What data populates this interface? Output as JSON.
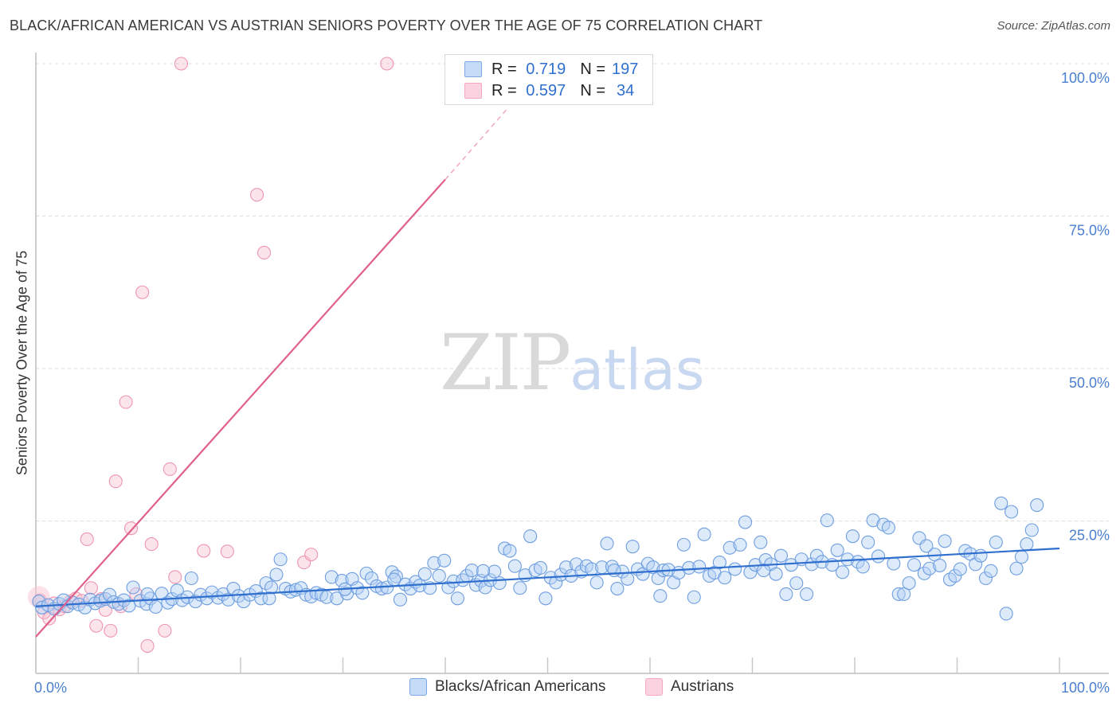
{
  "title": "BLACK/AFRICAN AMERICAN VS AUSTRIAN SENIORS POVERTY OVER THE AGE OF 75 CORRELATION CHART",
  "source": "Source: ZipAtlas.com",
  "watermark": {
    "zip": "ZIP",
    "atlas": "atlas"
  },
  "legend_top": [
    {
      "r_label": "R =",
      "r_value": "0.719",
      "n_label": "N =",
      "n_value": "197",
      "color": "#a8c8f0"
    },
    {
      "r_label": "R =",
      "r_value": "0.597",
      "n_label": "N =",
      "n_value": "34",
      "color": "#f5b8cb"
    }
  ],
  "legend_bottom": [
    "Blacks/African Americans",
    "Austrians"
  ],
  "chart_data": {
    "type": "scatter",
    "title": "BLACK/AFRICAN AMERICAN VS AUSTRIAN SENIORS POVERTY OVER THE AGE OF 75 CORRELATION CHART",
    "xlabel": "",
    "ylabel": "Seniors Poverty Over the Age of 75",
    "xlim": [
      0,
      100
    ],
    "ylim": [
      0,
      100
    ],
    "x_tick_labels": [
      "0.0%",
      "100.0%"
    ],
    "y_tick_labels": [
      "100.0%",
      "75.0%",
      "50.0%",
      "25.0%"
    ],
    "y_tick_values": [
      100,
      75,
      50,
      25
    ],
    "grid": true,
    "legend_position": "top-center",
    "series": [
      {
        "name": "Blacks/African Americans",
        "color": "#7aa8e8",
        "line_color": "#2f6fce",
        "trend": {
          "x0": 0,
          "y0": 11.0,
          "x1": 100,
          "y1": 20.5
        },
        "points": [
          [
            0.3,
            11.8
          ],
          [
            0.6,
            10.8
          ],
          [
            1.2,
            11.2
          ],
          [
            1.8,
            10.6
          ],
          [
            2.3,
            11.4
          ],
          [
            2.7,
            12.0
          ],
          [
            3.1,
            11.0
          ],
          [
            3.6,
            11.6
          ],
          [
            4.2,
            11.3
          ],
          [
            4.8,
            10.8
          ],
          [
            5.3,
            12.1
          ],
          [
            5.8,
            11.5
          ],
          [
            6.3,
            11.9
          ],
          [
            6.8,
            12.2
          ],
          [
            7.2,
            12.9
          ],
          [
            7.6,
            11.7
          ],
          [
            8.1,
            11.4
          ],
          [
            8.6,
            12.0
          ],
          [
            9.1,
            11.1
          ],
          [
            9.5,
            14.1
          ],
          [
            10.2,
            11.9
          ],
          [
            10.8,
            11.4
          ],
          [
            11.2,
            12.3
          ],
          [
            11.7,
            10.9
          ],
          [
            12.3,
            13.1
          ],
          [
            12.9,
            11.6
          ],
          [
            13.3,
            12.2
          ],
          [
            13.8,
            13.6
          ],
          [
            14.3,
            12.0
          ],
          [
            14.8,
            12.5
          ],
          [
            15.2,
            15.6
          ],
          [
            15.6,
            11.8
          ],
          [
            16.1,
            12.9
          ],
          [
            16.7,
            12.3
          ],
          [
            17.2,
            13.3
          ],
          [
            17.8,
            12.4
          ],
          [
            18.3,
            13.0
          ],
          [
            18.8,
            12.1
          ],
          [
            19.3,
            13.9
          ],
          [
            19.8,
            12.7
          ],
          [
            20.3,
            11.8
          ],
          [
            20.9,
            12.9
          ],
          [
            21.5,
            13.5
          ],
          [
            22.0,
            12.3
          ],
          [
            22.5,
            14.8
          ],
          [
            23.0,
            14.1
          ],
          [
            23.5,
            16.2
          ],
          [
            23.9,
            18.7
          ],
          [
            24.4,
            13.9
          ],
          [
            24.9,
            13.4
          ],
          [
            25.4,
            13.7
          ],
          [
            25.9,
            14.0
          ],
          [
            26.4,
            12.9
          ],
          [
            26.9,
            12.6
          ],
          [
            27.4,
            13.2
          ],
          [
            27.9,
            12.9
          ],
          [
            28.4,
            12.5
          ],
          [
            28.9,
            15.8
          ],
          [
            29.4,
            12.3
          ],
          [
            29.9,
            15.2
          ],
          [
            30.4,
            13.1
          ],
          [
            30.9,
            15.5
          ],
          [
            31.4,
            14.0
          ],
          [
            31.9,
            13.2
          ],
          [
            32.3,
            16.4
          ],
          [
            32.8,
            15.6
          ],
          [
            33.3,
            14.3
          ],
          [
            33.8,
            13.9
          ],
          [
            34.3,
            14.1
          ],
          [
            34.8,
            16.6
          ],
          [
            35.2,
            15.9
          ],
          [
            35.6,
            12.1
          ],
          [
            36.1,
            14.6
          ],
          [
            36.6,
            13.9
          ],
          [
            37.1,
            15.0
          ],
          [
            37.5,
            14.4
          ],
          [
            38.0,
            16.3
          ],
          [
            38.5,
            14.0
          ],
          [
            38.9,
            18.1
          ],
          [
            39.4,
            16.0
          ],
          [
            39.9,
            18.5
          ],
          [
            40.3,
            14.1
          ],
          [
            40.8,
            15.1
          ],
          [
            41.2,
            12.3
          ],
          [
            41.7,
            15.3
          ],
          [
            42.1,
            16.0
          ],
          [
            42.6,
            16.9
          ],
          [
            43.0,
            14.5
          ],
          [
            43.5,
            15.2
          ],
          [
            43.9,
            14.1
          ],
          [
            44.4,
            15.3
          ],
          [
            44.8,
            16.7
          ],
          [
            45.3,
            14.8
          ],
          [
            45.8,
            20.5
          ],
          [
            46.3,
            20.1
          ],
          [
            46.8,
            17.6
          ],
          [
            47.3,
            14.0
          ],
          [
            47.8,
            16.1
          ],
          [
            48.3,
            22.5
          ],
          [
            48.8,
            16.9
          ],
          [
            49.3,
            17.3
          ],
          [
            49.8,
            12.3
          ],
          [
            50.3,
            15.7
          ],
          [
            50.8,
            14.9
          ],
          [
            51.3,
            16.2
          ],
          [
            51.8,
            17.4
          ],
          [
            52.3,
            16.0
          ],
          [
            52.8,
            17.9
          ],
          [
            53.3,
            16.7
          ],
          [
            53.8,
            17.6
          ],
          [
            54.3,
            17.1
          ],
          [
            54.8,
            14.9
          ],
          [
            55.3,
            17.4
          ],
          [
            55.8,
            21.3
          ],
          [
            56.3,
            17.5
          ],
          [
            56.8,
            13.9
          ],
          [
            57.3,
            16.7
          ],
          [
            57.8,
            15.5
          ],
          [
            58.3,
            20.8
          ],
          [
            58.8,
            17.1
          ],
          [
            59.3,
            16.3
          ],
          [
            59.8,
            18.0
          ],
          [
            60.3,
            17.4
          ],
          [
            60.8,
            15.6
          ],
          [
            61.3,
            16.9
          ],
          [
            61.8,
            17.0
          ],
          [
            62.3,
            14.9
          ],
          [
            62.8,
            16.5
          ],
          [
            63.3,
            21.1
          ],
          [
            63.8,
            17.3
          ],
          [
            64.3,
            12.5
          ],
          [
            64.8,
            17.5
          ],
          [
            65.3,
            22.8
          ],
          [
            65.8,
            16.0
          ],
          [
            66.3,
            16.5
          ],
          [
            66.8,
            18.2
          ],
          [
            67.3,
            15.7
          ],
          [
            67.8,
            20.6
          ],
          [
            68.3,
            17.1
          ],
          [
            68.8,
            21.1
          ],
          [
            69.3,
            24.8
          ],
          [
            69.8,
            16.6
          ],
          [
            70.3,
            17.8
          ],
          [
            70.8,
            21.5
          ],
          [
            71.3,
            18.6
          ],
          [
            71.8,
            17.9
          ],
          [
            72.3,
            16.3
          ],
          [
            72.8,
            19.3
          ],
          [
            73.3,
            13.0
          ],
          [
            73.8,
            17.8
          ],
          [
            74.3,
            14.8
          ],
          [
            74.8,
            18.7
          ],
          [
            75.3,
            13.0
          ],
          [
            75.8,
            17.9
          ],
          [
            76.3,
            19.3
          ],
          [
            76.8,
            18.3
          ],
          [
            77.3,
            25.1
          ],
          [
            77.8,
            17.8
          ],
          [
            78.3,
            20.2
          ],
          [
            78.8,
            16.6
          ],
          [
            79.3,
            18.7
          ],
          [
            79.8,
            22.5
          ],
          [
            80.3,
            18.3
          ],
          [
            80.8,
            17.5
          ],
          [
            81.3,
            21.5
          ],
          [
            81.8,
            25.1
          ],
          [
            82.3,
            19.2
          ],
          [
            82.8,
            24.4
          ],
          [
            83.3,
            23.9
          ],
          [
            83.8,
            18.0
          ],
          [
            84.3,
            13.0
          ],
          [
            84.8,
            13.0
          ],
          [
            85.3,
            14.8
          ],
          [
            85.8,
            17.8
          ],
          [
            86.3,
            22.2
          ],
          [
            86.8,
            16.4
          ],
          [
            87.3,
            17.2
          ],
          [
            87.8,
            19.5
          ],
          [
            88.3,
            17.7
          ],
          [
            88.8,
            21.7
          ],
          [
            89.3,
            15.4
          ],
          [
            89.8,
            16.0
          ],
          [
            90.3,
            17.1
          ],
          [
            90.8,
            20.1
          ],
          [
            91.3,
            19.6
          ],
          [
            91.8,
            17.9
          ],
          [
            92.3,
            19.3
          ],
          [
            92.8,
            15.6
          ],
          [
            93.3,
            16.8
          ],
          [
            93.8,
            21.5
          ],
          [
            94.3,
            27.9
          ],
          [
            94.8,
            9.8
          ],
          [
            95.3,
            26.5
          ],
          [
            95.8,
            17.2
          ],
          [
            96.3,
            19.1
          ],
          [
            96.8,
            21.2
          ],
          [
            97.3,
            23.5
          ],
          [
            97.8,
            27.6
          ],
          [
            56.5,
            16.9
          ],
          [
            35.0,
            15.4
          ],
          [
            22.8,
            12.3
          ],
          [
            10.9,
            13.0
          ],
          [
            43.7,
            16.8
          ],
          [
            30.2,
            13.8
          ],
          [
            61.0,
            12.7
          ],
          [
            87.0,
            20.9
          ],
          [
            71.1,
            16.9
          ]
        ]
      },
      {
        "name": "Austrians",
        "color": "#f5a8c0",
        "line_color": "#e0608a",
        "trend": {
          "x0": 0,
          "y0": 6.0,
          "x1": 40,
          "y1": 81.0,
          "dash_to": {
            "x": 46,
            "y": 92.5
          }
        },
        "points": [
          [
            0.4,
            12.0
          ],
          [
            0.8,
            10.0
          ],
          [
            1.3,
            9.0
          ],
          [
            1.8,
            11.5
          ],
          [
            2.3,
            10.5
          ],
          [
            2.8,
            11.0
          ],
          [
            3.4,
            11.8
          ],
          [
            3.9,
            12.3
          ],
          [
            4.5,
            11.9
          ],
          [
            5.0,
            22.0
          ],
          [
            5.4,
            14.0
          ],
          [
            5.9,
            7.8
          ],
          [
            6.4,
            12.2
          ],
          [
            6.8,
            10.4
          ],
          [
            7.3,
            7.0
          ],
          [
            7.8,
            31.5
          ],
          [
            8.3,
            11.0
          ],
          [
            8.8,
            44.5
          ],
          [
            9.3,
            23.8
          ],
          [
            9.8,
            13.0
          ],
          [
            10.4,
            62.5
          ],
          [
            10.9,
            4.5
          ],
          [
            11.3,
            21.2
          ],
          [
            12.6,
            7.0
          ],
          [
            13.1,
            33.5
          ],
          [
            13.6,
            15.8
          ],
          [
            14.2,
            100.0
          ],
          [
            16.4,
            20.1
          ],
          [
            18.7,
            20.0
          ],
          [
            21.6,
            78.5
          ],
          [
            22.3,
            69.0
          ],
          [
            26.2,
            18.2
          ],
          [
            26.9,
            19.5
          ],
          [
            34.3,
            100.0
          ]
        ]
      }
    ]
  }
}
